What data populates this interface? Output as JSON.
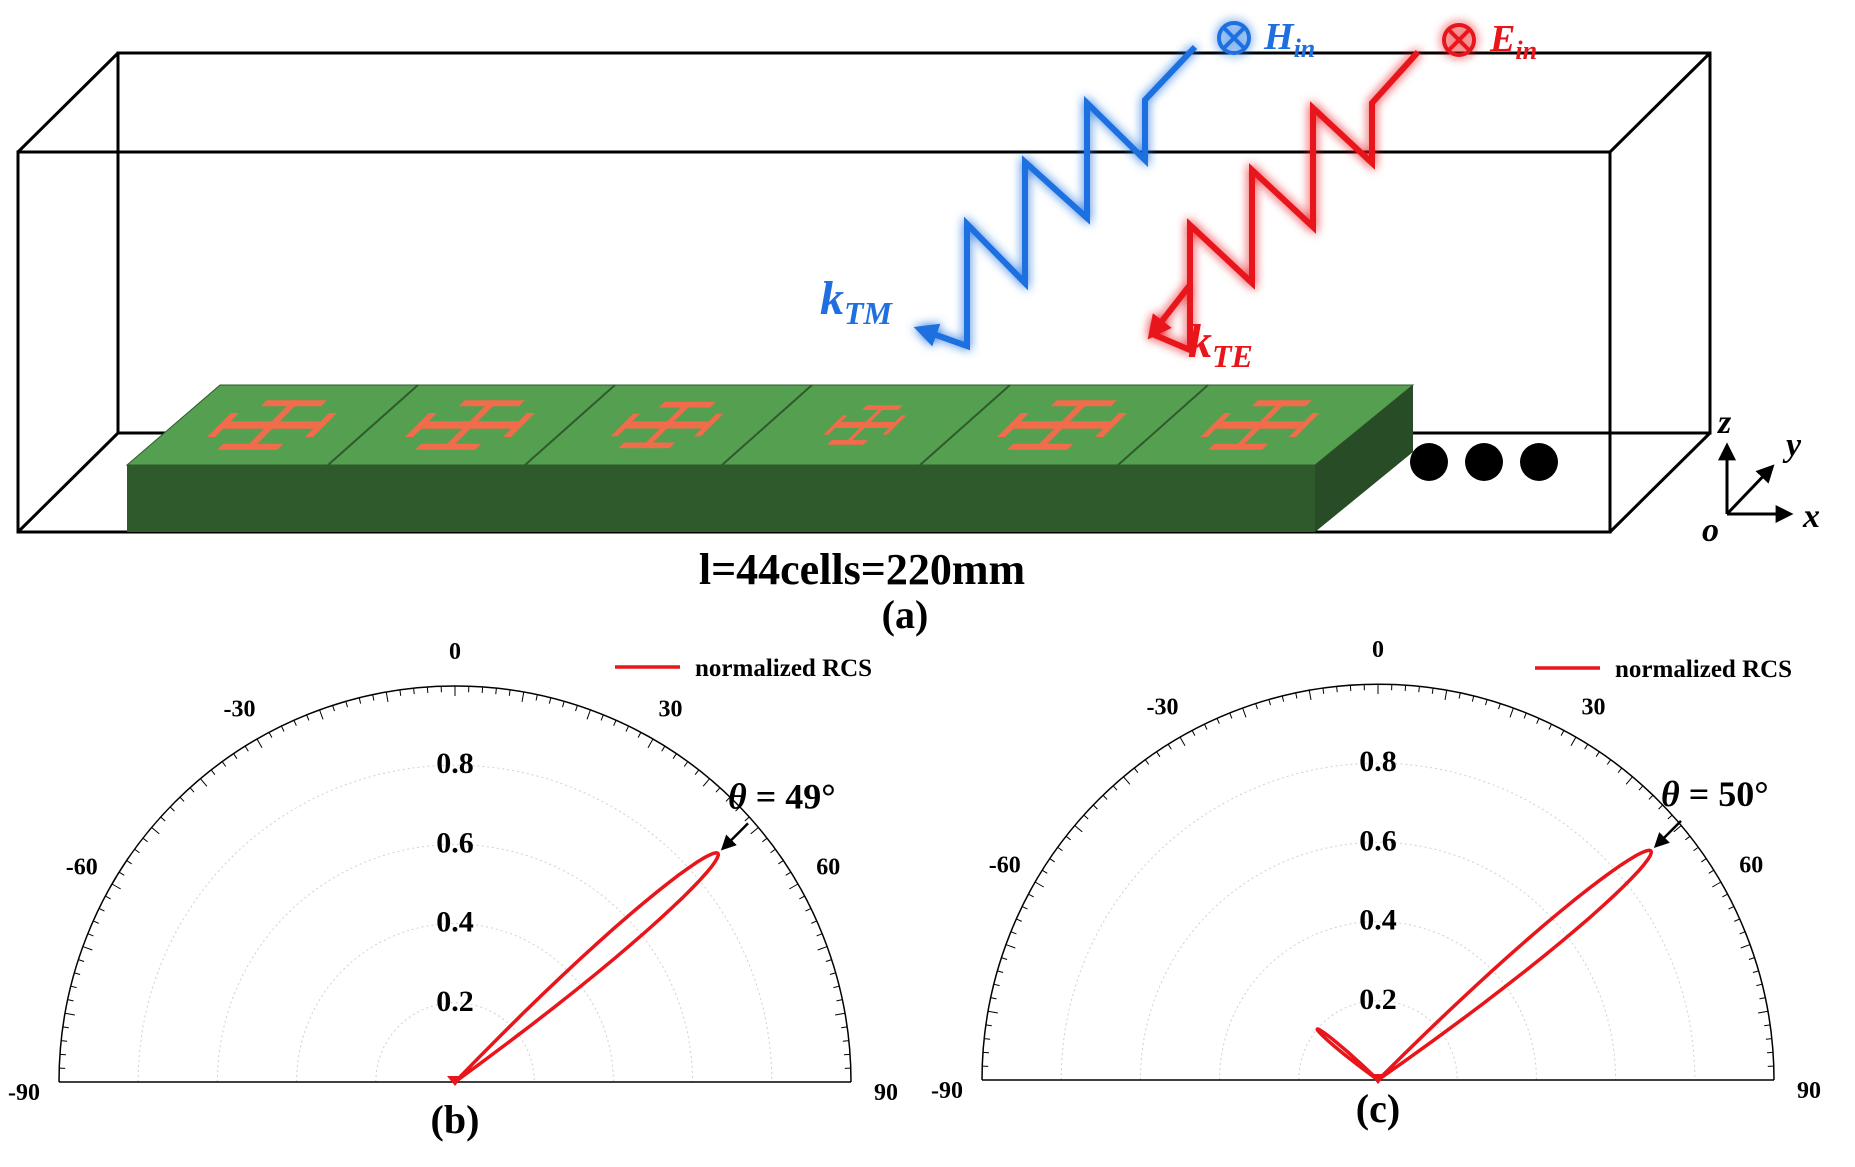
{
  "panel_a": {
    "h_label": "H",
    "h_sub": "in",
    "e_label": "E",
    "e_sub": "in",
    "ktm_label": "k",
    "ktm_sub": "TM",
    "kte_label": "k",
    "kte_sub": "TE",
    "length_label": "l=44cells=220mm",
    "caption": "(a)",
    "axis_z": "z",
    "axis_y": "y",
    "axis_x": "x",
    "axis_o": "o",
    "colors": {
      "tm_wave": "#1f6fe0",
      "te_wave": "#e8151b",
      "substrate_top": "#55a050",
      "substrate_side": "#2f5a2c",
      "patch": "#f06c4a"
    }
  },
  "legend_label": "normalized RCS",
  "chart_data": [
    {
      "type": "polar-line",
      "caption": "(b)",
      "angle_ticks": [
        "-90",
        "-60",
        "-30",
        "0",
        "30",
        "60",
        "90"
      ],
      "radial_ticks": [
        "0.2",
        "0.4",
        "0.6",
        "0.8"
      ],
      "theta_range": [
        -90,
        90
      ],
      "r_range": [
        0,
        1
      ],
      "series": [
        {
          "name": "normalized RCS",
          "color": "#e8151b",
          "peak_theta_deg": 49,
          "peak_value": 0.88,
          "beamwidth_deg": 5,
          "side_lobe_theta_deg": null,
          "side_lobe_value": 0
        }
      ],
      "annotation": {
        "symbol": "θ",
        "text": " = 49°",
        "theta_deg": 49
      }
    },
    {
      "type": "polar-line",
      "caption": "(c)",
      "angle_ticks": [
        "-90",
        "-60",
        "-30",
        "0",
        "30",
        "60",
        "90"
      ],
      "radial_ticks": [
        "0.2",
        "0.4",
        "0.6",
        "0.8"
      ],
      "theta_range": [
        -90,
        90
      ],
      "r_range": [
        0,
        1
      ],
      "series": [
        {
          "name": "normalized RCS",
          "color": "#e8151b",
          "peak_theta_deg": 50,
          "peak_value": 0.9,
          "beamwidth_deg": 5,
          "side_lobe_theta_deg": -50,
          "side_lobe_value": 0.2
        }
      ],
      "annotation": {
        "symbol": "θ",
        "text": " = 50°",
        "theta_deg": 50
      }
    }
  ]
}
